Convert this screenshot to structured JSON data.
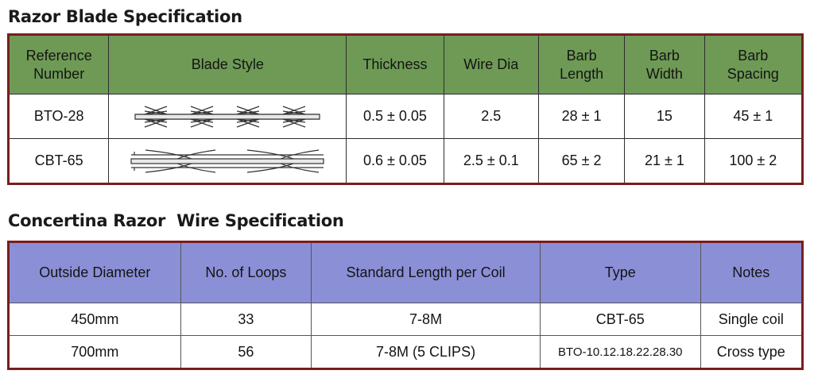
{
  "blade_spec": {
    "title": "Razor Blade Specification",
    "headers": [
      "Reference\nNumber",
      "Blade Style",
      "Thickness",
      "Wire Dia",
      "Barb\nLength",
      "Barb\nWidth",
      "Barb\nSpacing"
    ],
    "rows": [
      {
        "ref": "BTO-28",
        "blade_icon": "bto-28-blade-diagram",
        "thickness": "0.5 ± 0.05",
        "wire_dia": "2.5",
        "barb_length": "28 ± 1",
        "barb_width": "15",
        "barb_spacing": "45 ± 1"
      },
      {
        "ref": "CBT-65",
        "blade_icon": "cbt-65-blade-diagram",
        "thickness": "0.6 ± 0.05",
        "wire_dia": "2.5 ± 0.1",
        "barb_length": "65 ± 2",
        "barb_width": "21 ± 1",
        "barb_spacing": "100 ± 2"
      }
    ],
    "header_color": "#6e9a55",
    "border_color": "#7a1d1d"
  },
  "wire_spec": {
    "title": "Concertina Razor  Wire Specification",
    "headers": [
      "Outside Diameter",
      "No. of Loops",
      "Standard Length per Coil",
      "Type",
      "Notes"
    ],
    "rows": [
      {
        "diameter": "450mm",
        "loops": "33",
        "length": "7-8M",
        "type": "CBT-65",
        "notes": "Single coil"
      },
      {
        "diameter": "700mm",
        "loops": "56",
        "length": "7-8M (5 CLIPS)",
        "type": "BTO-10.12.18.22.28.30",
        "notes": "Cross type"
      }
    ],
    "header_color": "#8b8fd6",
    "border_color": "#7a1d1d"
  }
}
